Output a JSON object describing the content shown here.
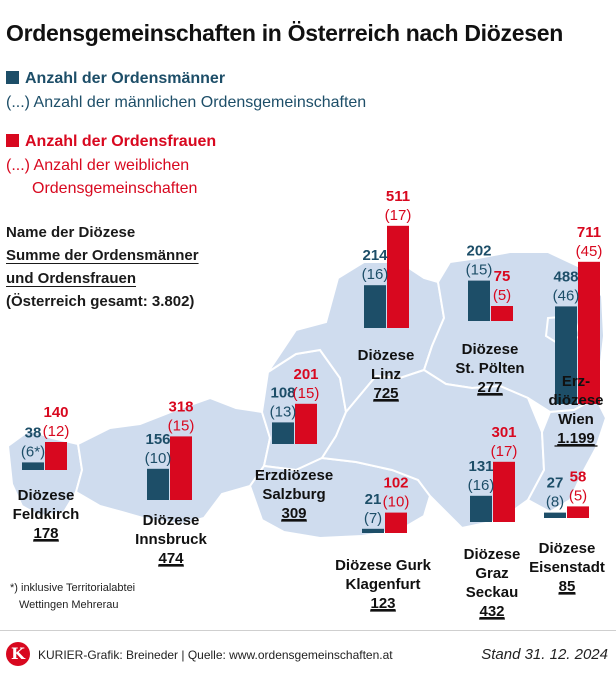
{
  "title": "Ordensgemeinschaften in Österreich nach Diözesen",
  "legend": {
    "men_label": "Anzahl der Ordensmänner",
    "men_comm_label": "(...) Anzahl der männlichen Ordensgemeinschaften",
    "women_label": "Anzahl der Ordensfrauen",
    "women_comm_line1": "(...) Anzahl der weiblichen",
    "women_comm_line2": "Ordensgemeinschaften"
  },
  "info": {
    "line1": "Name der Diözese",
    "line2": "Summe der Ordensmänner",
    "line3": "und Ordensfrauen",
    "line4": "(Österreich gesamt: 3.802)"
  },
  "footnote": {
    "line1": "*) inklusive Territorialabtei",
    "line2": "Wettingen Mehrerau"
  },
  "footer": {
    "logo": "K",
    "credit": "KURIER-Grafik: Breineder | Quelle: www.ordensgemeinschaften.at",
    "stand": "Stand 31. 12. 2024"
  },
  "colors": {
    "men": "#1d4e68",
    "women": "#d8081f",
    "map": "#cfdcee",
    "map_stroke": "#ffffff"
  },
  "chart_data": {
    "type": "bar",
    "title": "Ordensgemeinschaften in Österreich nach Diözesen",
    "series": [
      {
        "name": "Anzahl der Ordensmänner",
        "values": [
          38,
          156,
          108,
          21,
          214,
          202,
          131,
          488,
          27
        ]
      },
      {
        "name": "Anzahl der Ordensfrauen",
        "values": [
          140,
          318,
          201,
          102,
          511,
          75,
          301,
          711,
          58
        ]
      }
    ],
    "categories": [
      "Diözese Feldkirch",
      "Diözese Innsbruck",
      "Erzdiözese Salzburg",
      "Diözese Gurk Klagenfurt",
      "Diözese Linz",
      "Diözese St. Pölten",
      "Diözese Graz Seckau",
      "Erzdiözese Wien",
      "Diözese Eisenstadt"
    ],
    "dioceses": [
      {
        "name_lines": [
          "Diözese",
          "Feldkirch"
        ],
        "men": 38,
        "men_comm": "(6*)",
        "women": 140,
        "women_comm": "(12)",
        "total": "178"
      },
      {
        "name_lines": [
          "Diözese",
          "Innsbruck"
        ],
        "men": 156,
        "men_comm": "(10)",
        "women": 318,
        "women_comm": "(15)",
        "total": "474"
      },
      {
        "name_lines": [
          "Erzdiözese",
          "Salzburg"
        ],
        "men": 108,
        "men_comm": "(13)",
        "women": 201,
        "women_comm": "(15)",
        "total": "309"
      },
      {
        "name_lines": [
          "Diözese Gurk",
          "Klagenfurt"
        ],
        "men": 21,
        "men_comm": "(7)",
        "women": 102,
        "women_comm": "(10)",
        "total": "123"
      },
      {
        "name_lines": [
          "Diözese",
          "Linz"
        ],
        "men": 214,
        "men_comm": "(16)",
        "women": 511,
        "women_comm": "(17)",
        "total": "725"
      },
      {
        "name_lines": [
          "Diözese",
          "St. Pölten"
        ],
        "men": 202,
        "men_comm": "(15)",
        "women": 75,
        "women_comm": "(5)",
        "total": "277"
      },
      {
        "name_lines": [
          "Diözese",
          "Graz",
          "Seckau"
        ],
        "men": 131,
        "men_comm": "(16)",
        "women": 301,
        "women_comm": "(17)",
        "total": "432"
      },
      {
        "name_lines": [
          "Erz-",
          "diözese",
          "Wien"
        ],
        "men": 488,
        "men_comm": "(46)",
        "women": 711,
        "women_comm": "(45)",
        "total": "1.199"
      },
      {
        "name_lines": [
          "Diözese",
          "Eisenstadt"
        ],
        "men": 27,
        "men_comm": "(8)",
        "women": 58,
        "women_comm": "(5)",
        "total": "85"
      }
    ],
    "total_austria": "3.802",
    "xlabel": "",
    "ylabel": ""
  }
}
